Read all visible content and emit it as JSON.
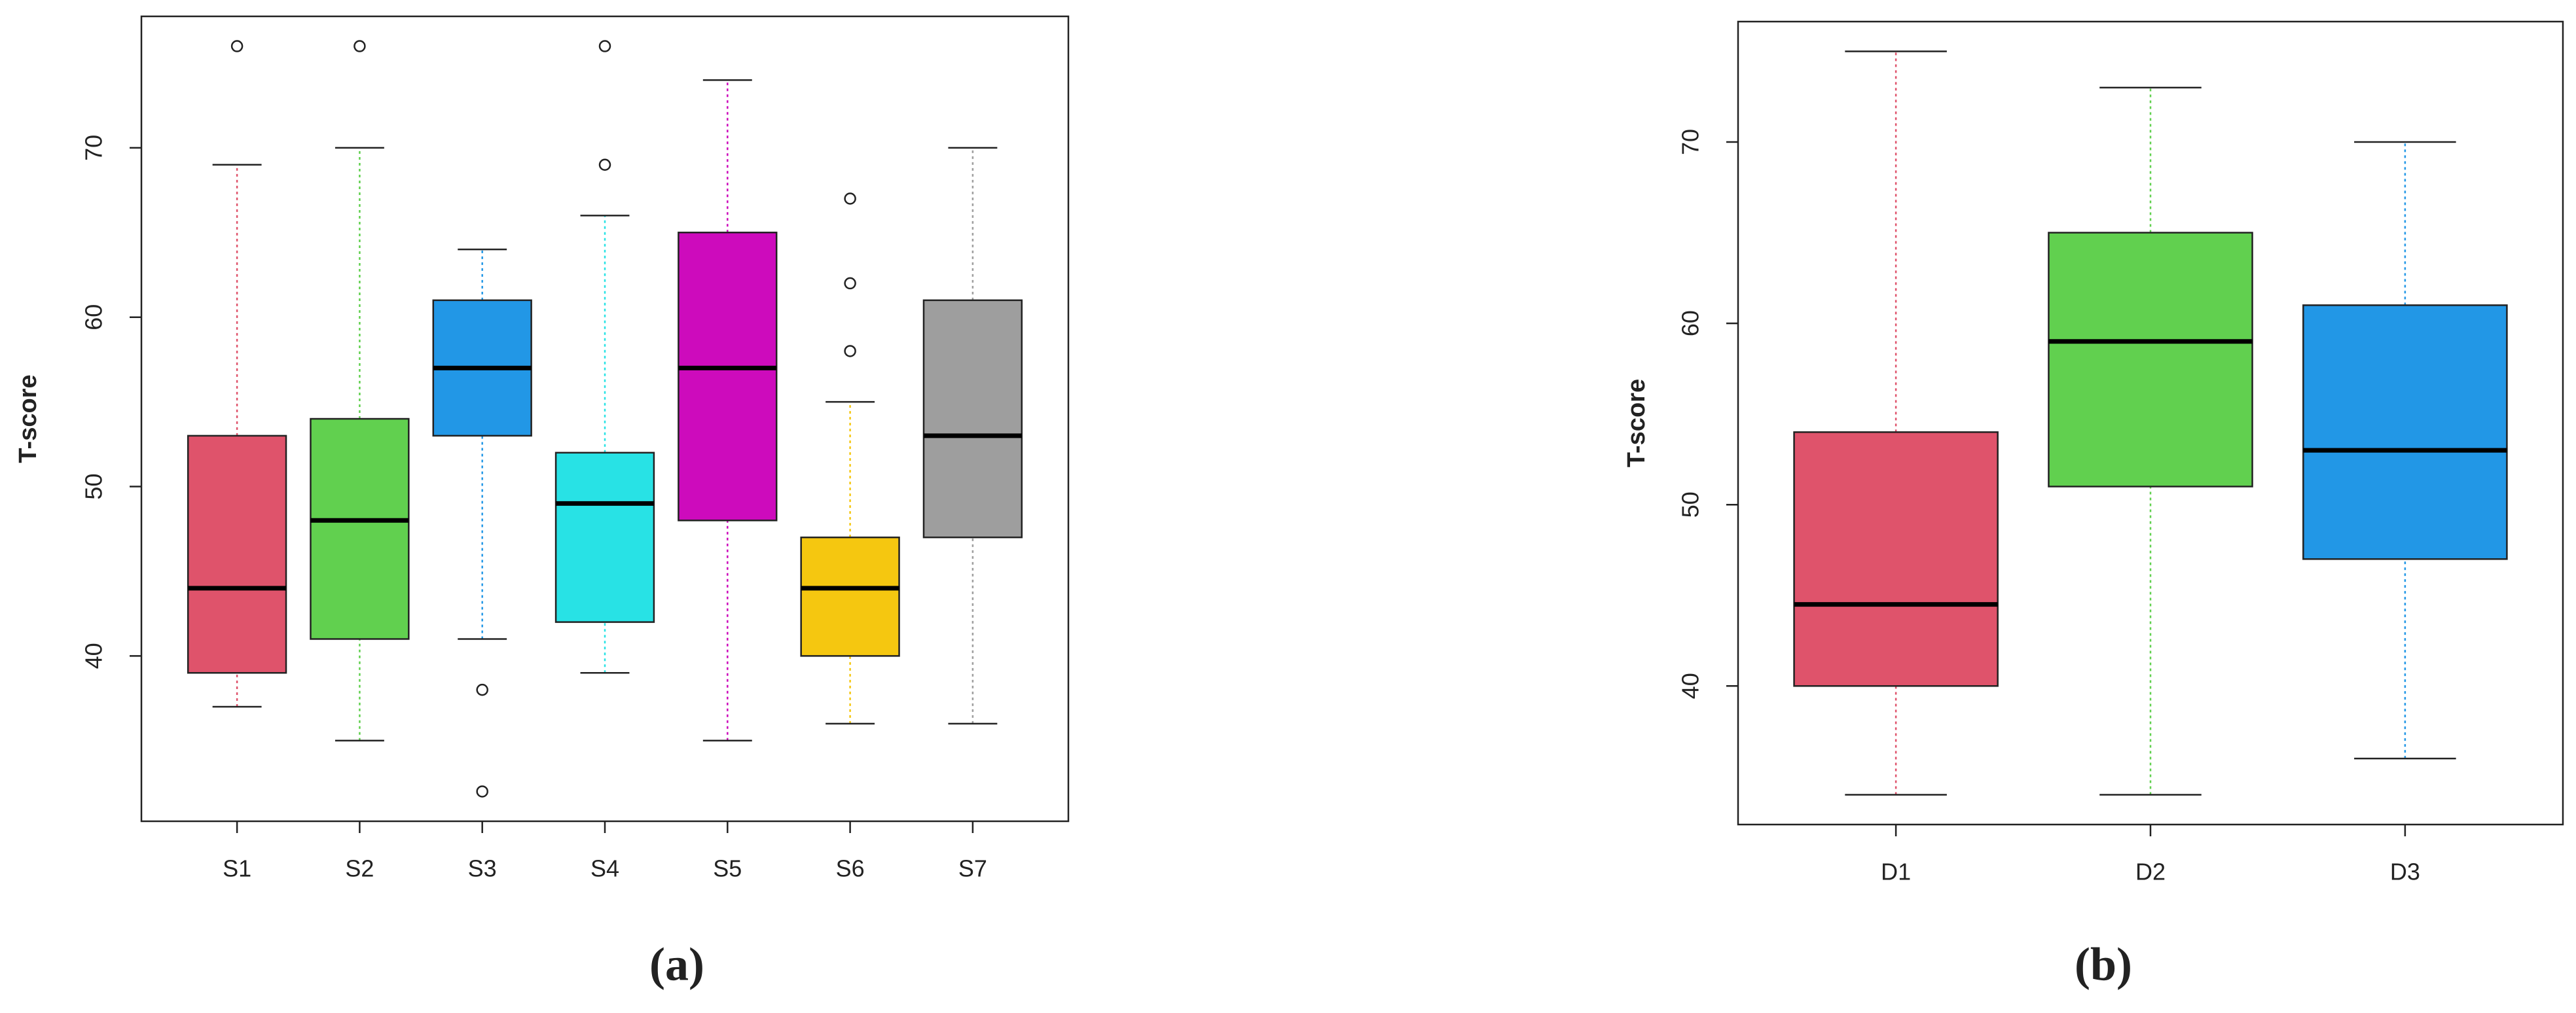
{
  "chart_data": [
    {
      "type": "box",
      "caption": "(a)",
      "y_label": "T-score",
      "categories": [
        "S1",
        "S2",
        "S3",
        "S4",
        "S5",
        "S6",
        "S7"
      ],
      "colors": [
        "#df536b",
        "#61d04f",
        "#2297e6",
        "#28e2e5",
        "#cd0bbc",
        "#f5c710",
        "#9e9e9e"
      ],
      "stats": [
        [
          37,
          39,
          44,
          53,
          69
        ],
        [
          35,
          41,
          48,
          54,
          70
        ],
        [
          41,
          53,
          57,
          61,
          64
        ],
        [
          39,
          42,
          49,
          52,
          66
        ],
        [
          35,
          48,
          57,
          65,
          74
        ],
        [
          36,
          40,
          44,
          47,
          55
        ],
        [
          36,
          47,
          53,
          61,
          70
        ]
      ],
      "outliers": [
        [
          76
        ],
        [
          76
        ],
        [
          38,
          32
        ],
        [
          69,
          76
        ],
        [],
        [
          58,
          62,
          67
        ],
        []
      ],
      "ylim": [
        30.24,
        77.76
      ],
      "yticks": [
        40,
        50,
        60,
        70
      ]
    },
    {
      "type": "box",
      "caption": "(b)",
      "y_label": "T-score",
      "categories": [
        "D1",
        "D2",
        "D3"
      ],
      "colors": [
        "#df536b",
        "#61d04f",
        "#2297e6"
      ],
      "stats": [
        [
          34,
          40,
          44.5,
          54,
          75
        ],
        [
          34,
          51,
          59,
          65,
          73
        ],
        [
          36,
          47,
          53,
          61,
          70
        ]
      ],
      "outliers": [
        [],
        [],
        []
      ],
      "ylim": [
        32.36,
        76.64
      ],
      "yticks": [
        40,
        50,
        60,
        70
      ]
    }
  ]
}
